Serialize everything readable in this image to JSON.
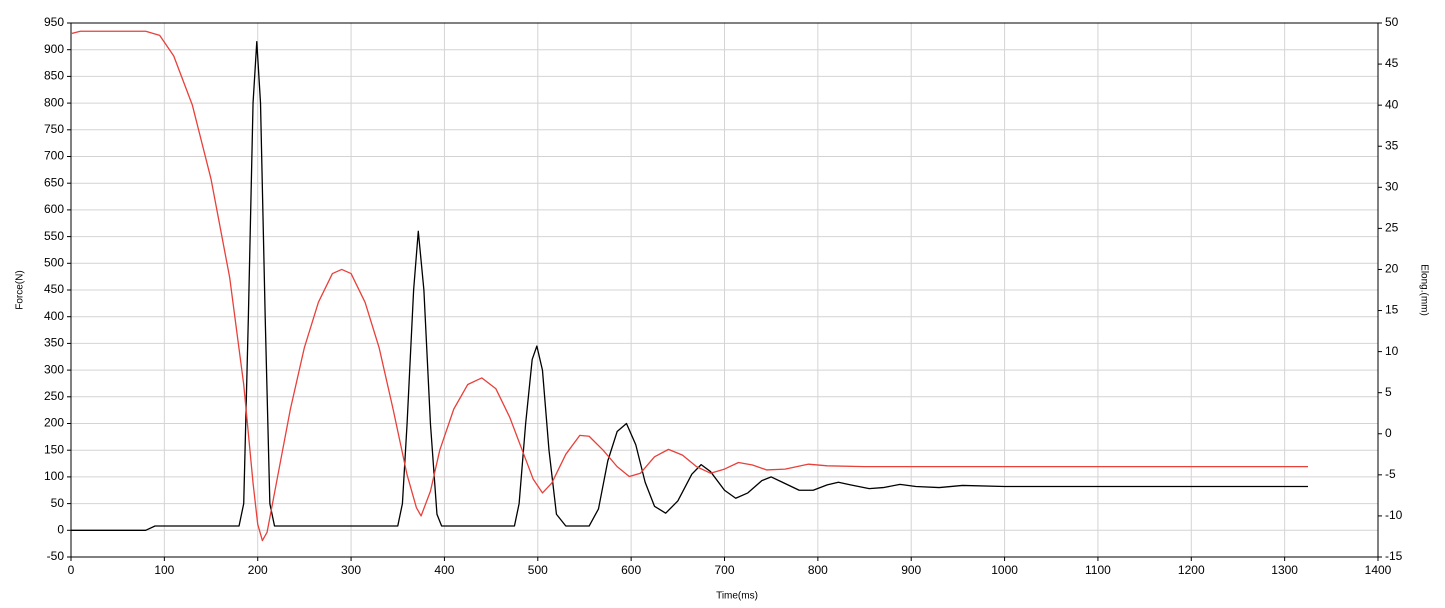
{
  "chart_data": {
    "type": "line",
    "x_label": "Time(ms)",
    "y_label": "Force(N)",
    "y2_label": "Elong.(mm)",
    "xlim": [
      0,
      1400
    ],
    "xticks": [
      0,
      100,
      200,
      300,
      400,
      500,
      600,
      700,
      800,
      900,
      1000,
      1100,
      1200,
      1300,
      1400
    ],
    "ylim": [
      -50,
      950
    ],
    "yticks": [
      -50,
      0,
      50,
      100,
      150,
      200,
      250,
      300,
      350,
      400,
      450,
      500,
      550,
      600,
      650,
      700,
      750,
      800,
      850,
      900,
      950
    ],
    "y2lim": [
      -15,
      50
    ],
    "y2ticks": [
      -15,
      -10,
      -5,
      0,
      5,
      10,
      15,
      20,
      25,
      30,
      35,
      40,
      45,
      50
    ],
    "grid": true,
    "series": [
      {
        "color": "#000000",
        "axis": "y",
        "x": [
          0,
          80,
          90,
          180,
          185,
          190,
          195,
          199,
          203,
          208,
          213,
          218,
          350,
          355,
          360,
          367,
          372,
          378,
          385,
          392,
          397,
          475,
          480,
          487,
          494,
          499,
          505,
          512,
          520,
          530,
          555,
          565,
          575,
          585,
          595,
          605,
          615,
          625,
          637,
          650,
          665,
          675,
          685,
          700,
          712,
          725,
          740,
          750,
          762,
          780,
          795,
          810,
          822,
          835,
          855,
          870,
          888,
          905,
          930,
          955,
          1000,
          1100,
          1200,
          1325
        ],
        "values": [
          0,
          0,
          8,
          8,
          50,
          400,
          800,
          915,
          800,
          400,
          50,
          8,
          8,
          50,
          200,
          450,
          560,
          450,
          200,
          30,
          8,
          8,
          50,
          200,
          320,
          345,
          300,
          150,
          30,
          8,
          8,
          40,
          130,
          185,
          200,
          160,
          90,
          45,
          32,
          55,
          105,
          123,
          110,
          75,
          60,
          70,
          93,
          100,
          90,
          75,
          75,
          85,
          90,
          85,
          78,
          80,
          86,
          82,
          80,
          84,
          82,
          82,
          82,
          82
        ]
      },
      {
        "color": "#e8403a",
        "axis": "y2",
        "x": [
          0,
          10,
          80,
          95,
          110,
          130,
          150,
          170,
          185,
          195,
          200,
          205,
          210,
          220,
          235,
          250,
          265,
          280,
          290,
          300,
          315,
          330,
          345,
          360,
          370,
          375,
          385,
          395,
          410,
          425,
          440,
          455,
          470,
          485,
          495,
          505,
          515,
          530,
          545,
          555,
          570,
          585,
          598,
          610,
          625,
          640,
          655,
          670,
          685,
          700,
          715,
          730,
          745,
          765,
          790,
          810,
          850,
          900,
          1000,
          1100,
          1200,
          1325
        ],
        "values": [
          48.7,
          49,
          49,
          48.5,
          46,
          40,
          31,
          19,
          6,
          -6,
          -11,
          -13,
          -12,
          -6,
          3,
          10.5,
          16,
          19.5,
          20,
          19.5,
          16,
          10.5,
          3,
          -5,
          -9,
          -10,
          -7,
          -2,
          3,
          6,
          6.8,
          5.5,
          2,
          -2.5,
          -5.5,
          -7.2,
          -6,
          -2.5,
          -0.2,
          -0.3,
          -2,
          -4,
          -5.2,
          -4.8,
          -2.8,
          -1.9,
          -2.6,
          -4,
          -4.8,
          -4.3,
          -3.5,
          -3.8,
          -4.4,
          -4.3,
          -3.7,
          -3.9,
          -4,
          -4,
          -4,
          -4,
          -4,
          -4
        ]
      }
    ]
  }
}
